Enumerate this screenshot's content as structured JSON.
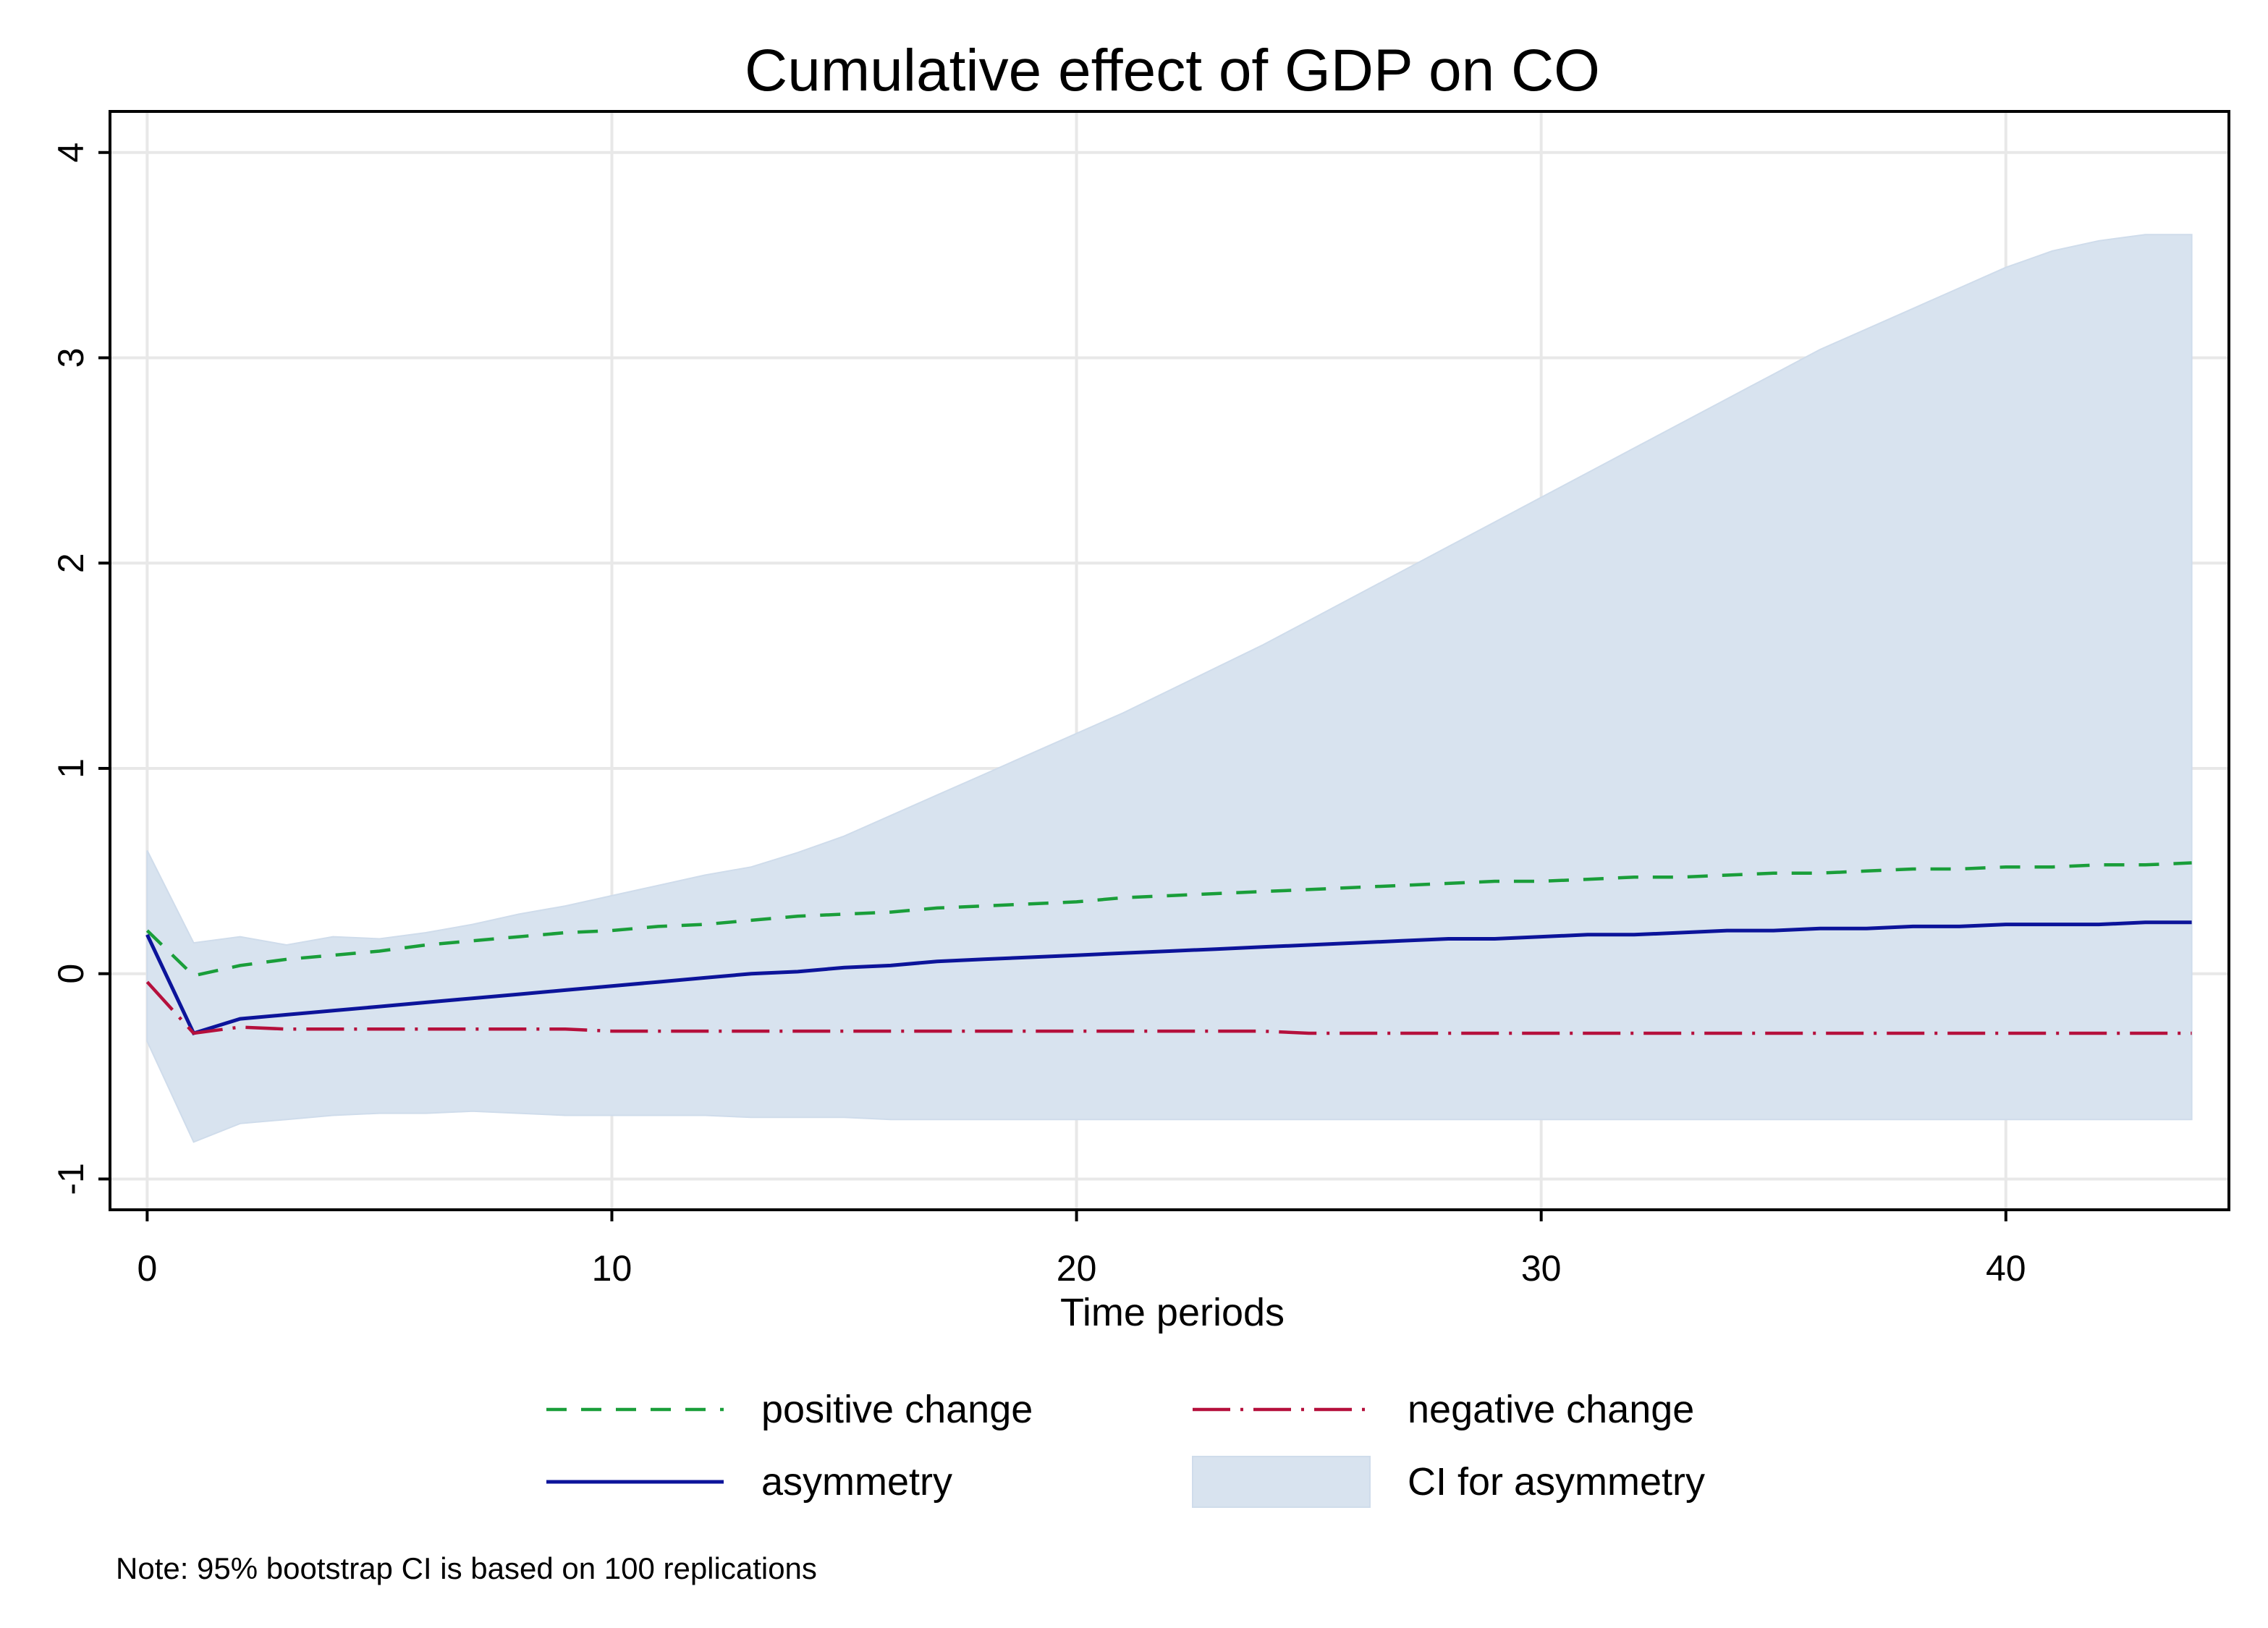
{
  "chart_data": {
    "type": "line",
    "title": "Cumulative effect of GDP on CO",
    "xlabel": "Time periods",
    "ylabel": "",
    "xlim": [
      -0.8,
      44.8
    ],
    "ylim": [
      -1.15,
      4.2
    ],
    "xticks": [
      0,
      10,
      20,
      30,
      40
    ],
    "yticks": [
      -1,
      0,
      1,
      2,
      3,
      4
    ],
    "grid": true,
    "legend_position": "bottom",
    "note": "Note: 95% bootstrap CI is based on 100 replications",
    "series": [
      {
        "name": "positive change",
        "style": "short-dash",
        "color": "#1a9e3a",
        "x": [
          0,
          1,
          2,
          3,
          4,
          5,
          6,
          7,
          8,
          9,
          10,
          11,
          12,
          13,
          14,
          15,
          16,
          17,
          18,
          19,
          20,
          21,
          22,
          23,
          24,
          25,
          26,
          27,
          28,
          29,
          30,
          31,
          32,
          33,
          34,
          35,
          36,
          37,
          38,
          39,
          40,
          41,
          42,
          43,
          44
        ],
        "y": [
          0.21,
          -0.01,
          0.04,
          0.07,
          0.09,
          0.11,
          0.14,
          0.16,
          0.18,
          0.2,
          0.21,
          0.23,
          0.24,
          0.26,
          0.28,
          0.29,
          0.3,
          0.32,
          0.33,
          0.34,
          0.35,
          0.37,
          0.38,
          0.39,
          0.4,
          0.41,
          0.42,
          0.43,
          0.44,
          0.45,
          0.45,
          0.46,
          0.47,
          0.47,
          0.48,
          0.49,
          0.49,
          0.5,
          0.51,
          0.51,
          0.52,
          0.52,
          0.53,
          0.53,
          0.54
        ]
      },
      {
        "name": "negative change",
        "style": "long-dash-dot",
        "color": "#b5103c",
        "x": [
          0,
          1,
          2,
          3,
          4,
          5,
          6,
          7,
          8,
          9,
          10,
          11,
          12,
          13,
          14,
          15,
          16,
          17,
          18,
          19,
          20,
          21,
          22,
          23,
          24,
          25,
          26,
          27,
          28,
          29,
          30,
          31,
          32,
          33,
          34,
          35,
          36,
          37,
          38,
          39,
          40,
          41,
          42,
          43,
          44
        ],
        "y": [
          -0.04,
          -0.29,
          -0.26,
          -0.27,
          -0.27,
          -0.27,
          -0.27,
          -0.27,
          -0.27,
          -0.27,
          -0.28,
          -0.28,
          -0.28,
          -0.28,
          -0.28,
          -0.28,
          -0.28,
          -0.28,
          -0.28,
          -0.28,
          -0.28,
          -0.28,
          -0.28,
          -0.28,
          -0.28,
          -0.29,
          -0.29,
          -0.29,
          -0.29,
          -0.29,
          -0.29,
          -0.29,
          -0.29,
          -0.29,
          -0.29,
          -0.29,
          -0.29,
          -0.29,
          -0.29,
          -0.29,
          -0.29,
          -0.29,
          -0.29,
          -0.29,
          -0.29
        ]
      },
      {
        "name": "asymmetry",
        "style": "solid",
        "color": "#0c149a",
        "x": [
          0,
          1,
          2,
          3,
          4,
          5,
          6,
          7,
          8,
          9,
          10,
          11,
          12,
          13,
          14,
          15,
          16,
          17,
          18,
          19,
          20,
          21,
          22,
          23,
          24,
          25,
          26,
          27,
          28,
          29,
          30,
          31,
          32,
          33,
          34,
          35,
          36,
          37,
          38,
          39,
          40,
          41,
          42,
          43,
          44
        ],
        "y": [
          0.19,
          -0.29,
          -0.22,
          -0.2,
          -0.18,
          -0.16,
          -0.14,
          -0.12,
          -0.1,
          -0.08,
          -0.06,
          -0.04,
          -0.02,
          0.0,
          0.01,
          0.03,
          0.04,
          0.06,
          0.07,
          0.08,
          0.09,
          0.1,
          0.11,
          0.12,
          0.13,
          0.14,
          0.15,
          0.16,
          0.17,
          0.17,
          0.18,
          0.19,
          0.19,
          0.2,
          0.21,
          0.21,
          0.22,
          0.22,
          0.23,
          0.23,
          0.24,
          0.24,
          0.24,
          0.25,
          0.25
        ]
      }
    ],
    "band": {
      "name": "CI for asymmetry",
      "color": "#d8e3ef",
      "x": [
        0,
        1,
        2,
        3,
        4,
        5,
        6,
        7,
        8,
        9,
        10,
        11,
        12,
        13,
        14,
        15,
        16,
        17,
        18,
        19,
        20,
        21,
        22,
        23,
        24,
        25,
        26,
        27,
        28,
        29,
        30,
        31,
        32,
        33,
        34,
        35,
        36,
        37,
        38,
        39,
        40,
        41,
        42,
        43,
        44
      ],
      "upper": [
        0.6,
        0.15,
        0.18,
        0.14,
        0.18,
        0.17,
        0.2,
        0.24,
        0.29,
        0.33,
        0.38,
        0.43,
        0.48,
        0.52,
        0.59,
        0.67,
        0.77,
        0.87,
        0.97,
        1.07,
        1.17,
        1.27,
        1.38,
        1.49,
        1.6,
        1.72,
        1.84,
        1.96,
        2.08,
        2.2,
        2.32,
        2.44,
        2.56,
        2.68,
        2.8,
        2.92,
        3.04,
        3.14,
        3.24,
        3.34,
        3.44,
        3.52,
        3.57,
        3.6,
        3.6
      ]
    }
  }
}
